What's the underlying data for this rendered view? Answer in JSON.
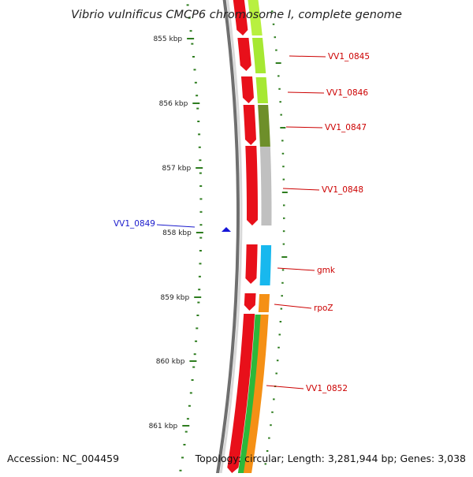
{
  "title": "Vibrio vulnificus CMCP6 chromosome I, complete genome",
  "footer": {
    "accession": "Accession: NC_004459",
    "stats": "Topology: circular; Length: 3,281,944 bp; Genes: 3,038"
  },
  "colors": {
    "backbone": "#8a8a8a",
    "tick": "#2e7d1f",
    "forward_arrow": "#e8101a",
    "label_red": "#cc0000",
    "label_blue": "#1a1acc",
    "blue_marker": "#1515d8"
  },
  "ticks": [
    "855 kbp",
    "856 kbp",
    "857 kbp",
    "858 kbp",
    "859 kbp",
    "860 kbp",
    "861 kbp"
  ],
  "genes": [
    {
      "label": "VV1_0845",
      "color": "#cc0000",
      "cog_color": "#a6e832"
    },
    {
      "label": "VV1_0846",
      "color": "#cc0000",
      "cog_color": "#a6e832"
    },
    {
      "label": "VV1_0847",
      "color": "#cc0000",
      "cog_color": "#6e8f2a"
    },
    {
      "label": "VV1_0848",
      "color": "#cc0000",
      "cog_color": "#c0c0c0"
    },
    {
      "label": "VV1_0849",
      "color": "#1a1acc",
      "cog_color": null
    },
    {
      "label": "gmk",
      "color": "#cc0000",
      "cog_color": "#18b8ee"
    },
    {
      "label": "rpoZ",
      "color": "#cc0000",
      "cog_color": "#f59015"
    },
    {
      "label": "VV1_0852",
      "color": "#cc0000",
      "cog_color": "#2cb83a"
    }
  ]
}
